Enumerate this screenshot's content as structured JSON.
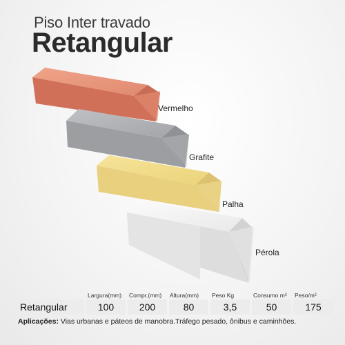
{
  "title": {
    "line1": "Piso Inter travado",
    "line2": "Retangular"
  },
  "bricks": [
    {
      "label": "Vermelho",
      "color": "#d9806a"
    },
    {
      "label": "Grafite",
      "color": "#a9abae"
    },
    {
      "label": "Palha",
      "color": "#ecd98a"
    },
    {
      "label": "Pérola",
      "color": "#ececec"
    }
  ],
  "specs": {
    "headers": [
      "Largura(mm)",
      "Compr.(mm)",
      "Altura(mm)",
      "Peso Kg",
      "Consumo m²",
      "Peso/m²"
    ],
    "row": {
      "name": "Retangular",
      "values": [
        "100",
        "200",
        "80",
        "3,5",
        "50",
        "175"
      ]
    }
  },
  "applications": {
    "label": "Aplicações:",
    "text": "Vias urbanas e páteos de manobra.Tráfego pesado, ônibus e caminhões."
  }
}
